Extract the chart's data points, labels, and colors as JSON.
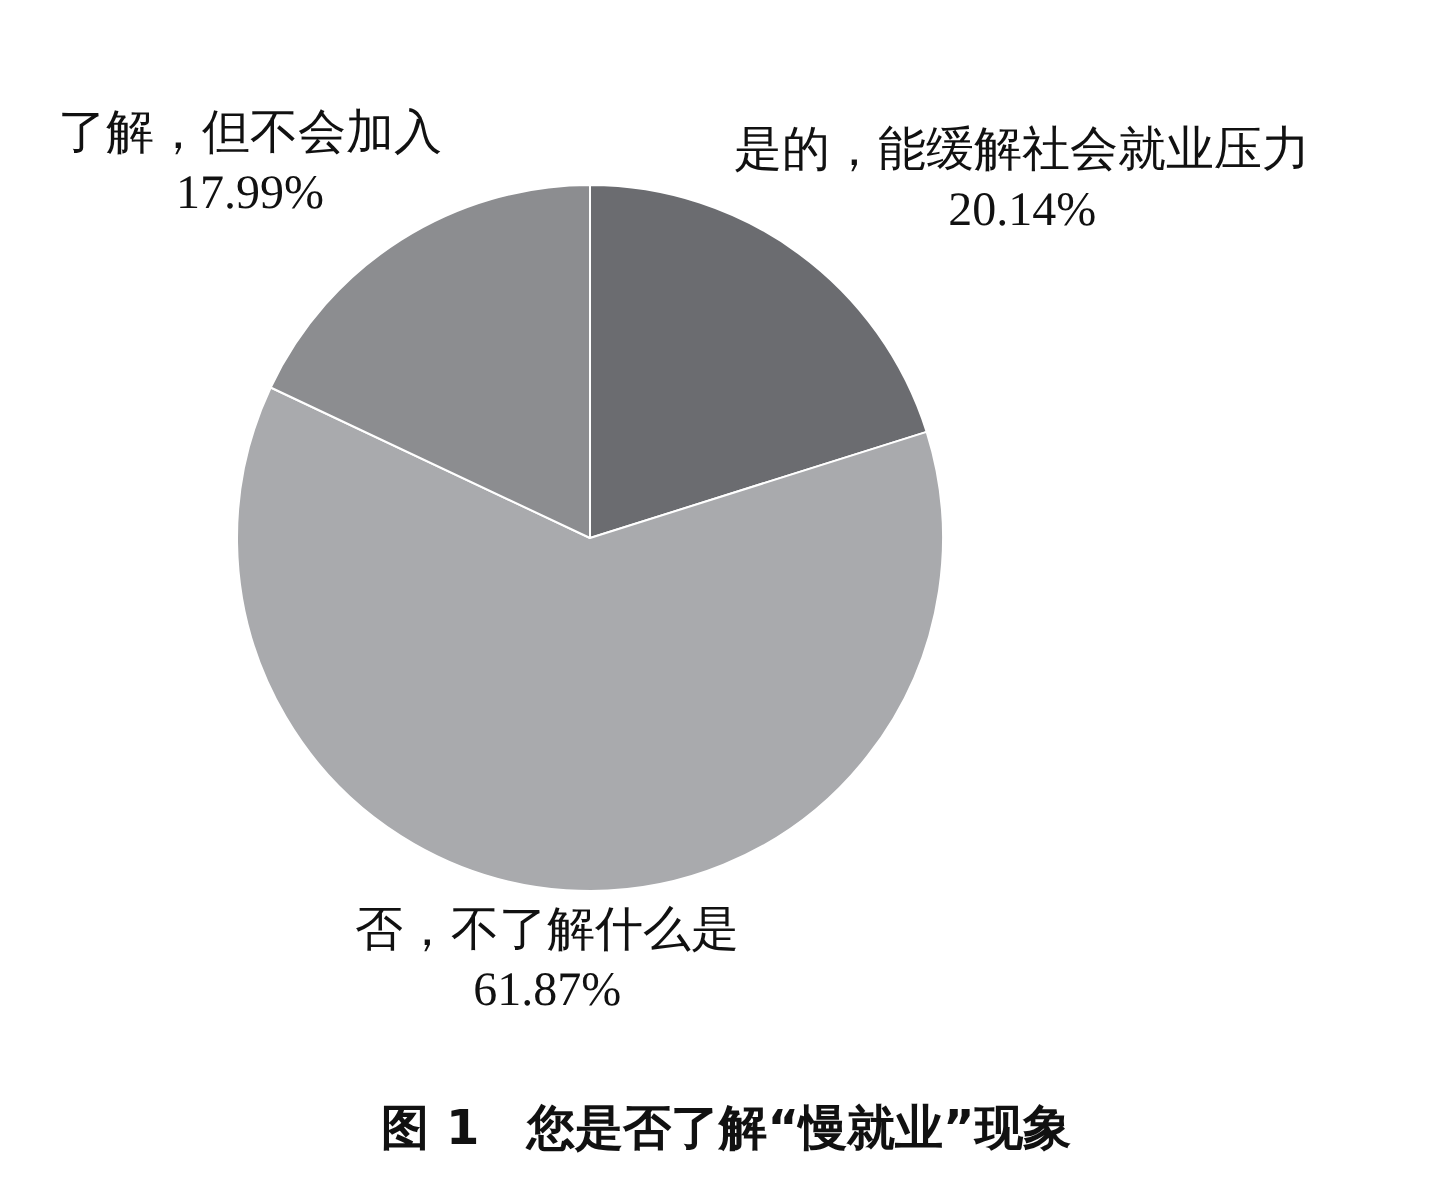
{
  "chart_data": {
    "type": "pie",
    "title": "图 1　您是否了解“慢就业”现象",
    "categories": [
      "是的，能缓解社会就业压力",
      "否，不了解什么是",
      "了解，但不会加入"
    ],
    "values": [
      20.14,
      61.87,
      17.99
    ],
    "colors": [
      "#6b6c70",
      "#a9aaad",
      "#8c8d90"
    ],
    "value_labels": [
      "20.14%",
      "61.87%",
      "17.99%"
    ],
    "legend": false
  }
}
